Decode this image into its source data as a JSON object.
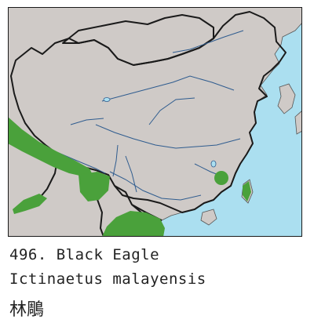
{
  "caption": {
    "entry": "496. Black Eagle",
    "scientific_name": "Ictinaetus malayensis",
    "chinese_name": "林鵰"
  },
  "map": {
    "colors": {
      "sea": "#abdff0",
      "land": "#cfcac7",
      "border": "#1a1a1a",
      "rivers": "#2f5c8f",
      "range": "#4aa13b"
    },
    "range_regions": [
      "himalayan-foothills",
      "yunnan",
      "myanmar-coast",
      "indochina",
      "jiangxi",
      "taiwan"
    ]
  }
}
